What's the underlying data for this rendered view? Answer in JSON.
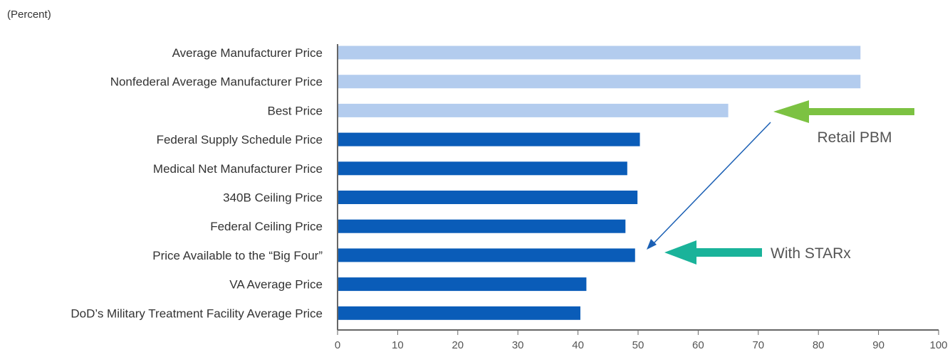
{
  "unit_label": "(Percent)",
  "colors": {
    "light_bar": "#b3ccee",
    "dark_bar": "#0a5cb8",
    "axis": "#666666",
    "retail_arrow": "#7cc242",
    "starx_arrow": "#1ab39a",
    "pointer_line": "#1a5fb4"
  },
  "chart_data": {
    "type": "bar",
    "orientation": "horizontal",
    "title": "",
    "xlabel": "",
    "ylabel": "",
    "xlim": [
      0,
      100
    ],
    "xticks": [
      0,
      10,
      20,
      30,
      40,
      50,
      60,
      70,
      80,
      90,
      100
    ],
    "grid": false,
    "categories": [
      "Average Manufacturer Price",
      "Nonfederal Average Manufacturer Price",
      "Best Price",
      "Federal Supply Schedule Price",
      "Medical Net Manufacturer Price",
      "340B Ceiling Price",
      "Federal Ceiling Price",
      "Price Available to the “Big Four”",
      "VA Average Price",
      "DoD’s Military Treatment Facility Average Price"
    ],
    "values": [
      87,
      87,
      65,
      50.3,
      48.2,
      49.9,
      47.9,
      49.5,
      41.4,
      40.4
    ],
    "bar_styles": [
      "light",
      "light",
      "light",
      "dark",
      "dark",
      "dark",
      "dark",
      "dark",
      "dark",
      "dark"
    ],
    "annotations": [
      {
        "text": "Retail PBM",
        "points_to_value": 65,
        "points_to_category": "Best Price"
      },
      {
        "text": "With STARx",
        "points_to_value": 49.5,
        "points_to_category": "Price Available to the “Big Four”"
      }
    ]
  }
}
